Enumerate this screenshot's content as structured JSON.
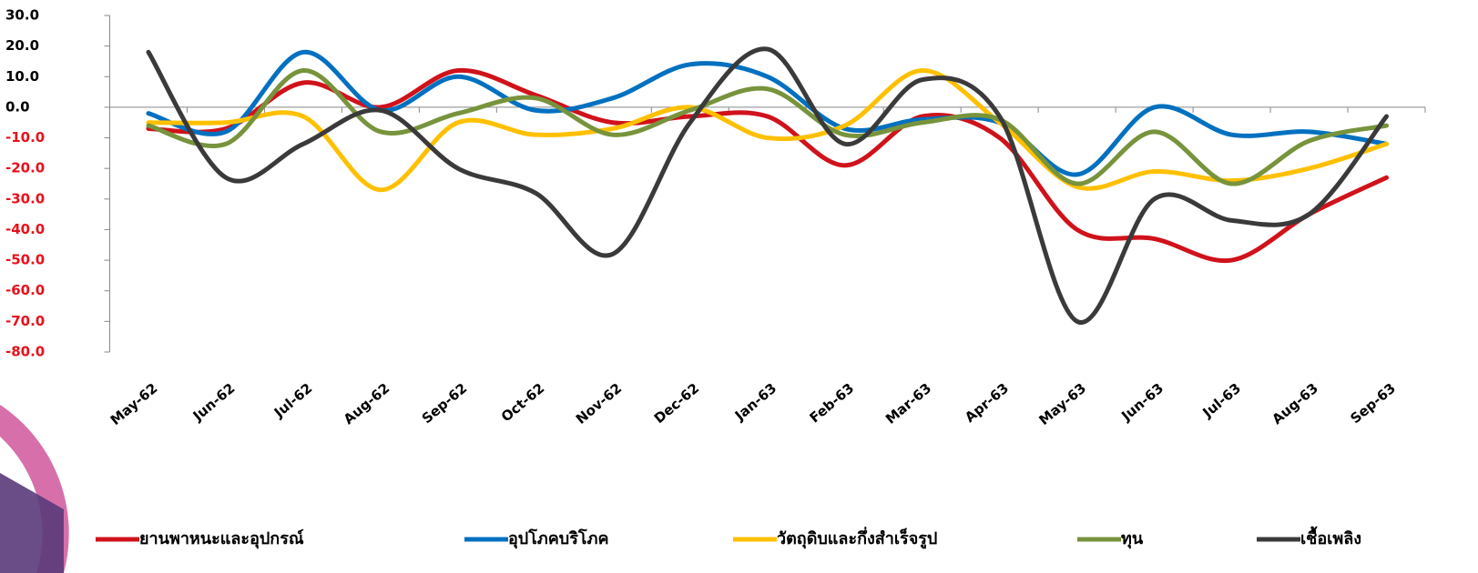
{
  "chart_data": {
    "type": "line",
    "categories": [
      "May-62",
      "Jun-62",
      "Jul-62",
      "Aug-62",
      "Sep-62",
      "Oct-62",
      "Nov-62",
      "Dec-62",
      "Jan-63",
      "Feb-63",
      "Mar-63",
      "Apr-63",
      "May-63",
      "Jun-63",
      "Jul-63",
      "Aug-63",
      "Sep-63"
    ],
    "series": [
      {
        "name": "ยานพาหนะและอุปกรณ์",
        "color": "#d0121b",
        "values": [
          -7,
          -7,
          8,
          0,
          12,
          4,
          -5,
          -3,
          -3,
          -19,
          -3,
          -10,
          -40,
          -43,
          -50,
          -35,
          -23
        ]
      },
      {
        "name": "อุปโภคบริโภค",
        "color": "#0070c0",
        "values": [
          -2,
          -8,
          18,
          -1,
          10,
          -1,
          3,
          14,
          10,
          -7,
          -4,
          -5,
          -22,
          0,
          -9,
          -8,
          -12
        ]
      },
      {
        "name": "วัตถุดิบและกึ่งสำเร็จรูป",
        "color": "#ffc000",
        "values": [
          -5,
          -5,
          -3,
          -27,
          -5,
          -9,
          -7,
          0,
          -10,
          -6,
          12,
          -5,
          -26,
          -21,
          -24,
          -20,
          -12
        ]
      },
      {
        "name": "ทุน",
        "color": "#77933c",
        "values": [
          -6,
          -12,
          12,
          -8,
          -2,
          3,
          -9,
          -1,
          6,
          -9,
          -5,
          -4,
          -25,
          -8,
          -25,
          -11,
          -6
        ]
      },
      {
        "name": "เชื้อเพลิง",
        "color": "#3a3a3a",
        "values": [
          18,
          -23,
          -12,
          -1,
          -20,
          -28,
          -48,
          -5,
          19,
          -12,
          9,
          -3,
          -70,
          -30,
          -37,
          -35,
          -3
        ]
      }
    ],
    "ylim": [
      -80,
      30
    ],
    "yticks": [
      {
        "value": 30,
        "label": "30.0"
      },
      {
        "value": 20,
        "label": "20.0"
      },
      {
        "value": 10,
        "label": "10.0"
      },
      {
        "value": 0,
        "label": "0.0"
      },
      {
        "value": -10,
        "label": "-10.0"
      },
      {
        "value": -20,
        "label": "-20.0"
      },
      {
        "value": -30,
        "label": "-30.0"
      },
      {
        "value": -40,
        "label": "-40.0"
      },
      {
        "value": -50,
        "label": "-50.0"
      },
      {
        "value": -60,
        "label": "-60.0"
      },
      {
        "value": -70,
        "label": "-70.0"
      },
      {
        "value": -80,
        "label": "-80.0"
      }
    ],
    "legend": "bottom",
    "smooth": true,
    "grid": false
  }
}
